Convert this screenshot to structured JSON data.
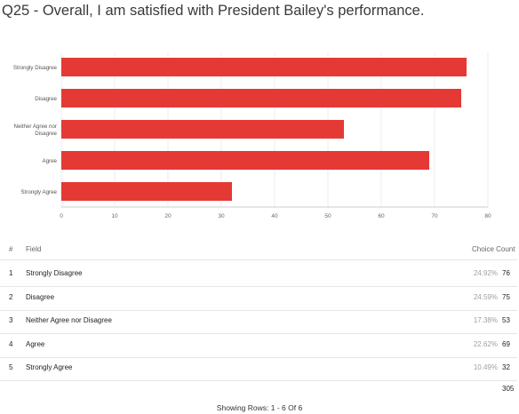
{
  "title": "Q25 - Overall, I am satisfied with President Bailey's performance.",
  "chart_data": {
    "type": "bar",
    "orientation": "horizontal",
    "categories": [
      "Strongly Disagree",
      "Disagree",
      "Neither Agree nor Disagree",
      "Agree",
      "Strongly Agree"
    ],
    "values": [
      76,
      75,
      53,
      69,
      32
    ],
    "xlim": [
      0,
      80
    ],
    "xticks": [
      0,
      10,
      20,
      30,
      40,
      50,
      60,
      70,
      80
    ],
    "bar_color": "#e53935",
    "grid": true,
    "title": "",
    "xlabel": "",
    "ylabel": ""
  },
  "table": {
    "headers": {
      "index": "#",
      "field": "Field",
      "choice_count": "Choice Count"
    },
    "rows": [
      {
        "index": "1",
        "field": "Strongly Disagree",
        "percent": "24.92%",
        "count": "76"
      },
      {
        "index": "2",
        "field": "Disagree",
        "percent": "24.59%",
        "count": "75"
      },
      {
        "index": "3",
        "field": "Neither Agree nor Disagree",
        "percent": "17.38%",
        "count": "53"
      },
      {
        "index": "4",
        "field": "Agree",
        "percent": "22.62%",
        "count": "69"
      },
      {
        "index": "5",
        "field": "Strongly Agree",
        "percent": "10.49%",
        "count": "32"
      }
    ],
    "total": "305"
  },
  "footer": "Showing Rows: 1 - 6 Of 6"
}
